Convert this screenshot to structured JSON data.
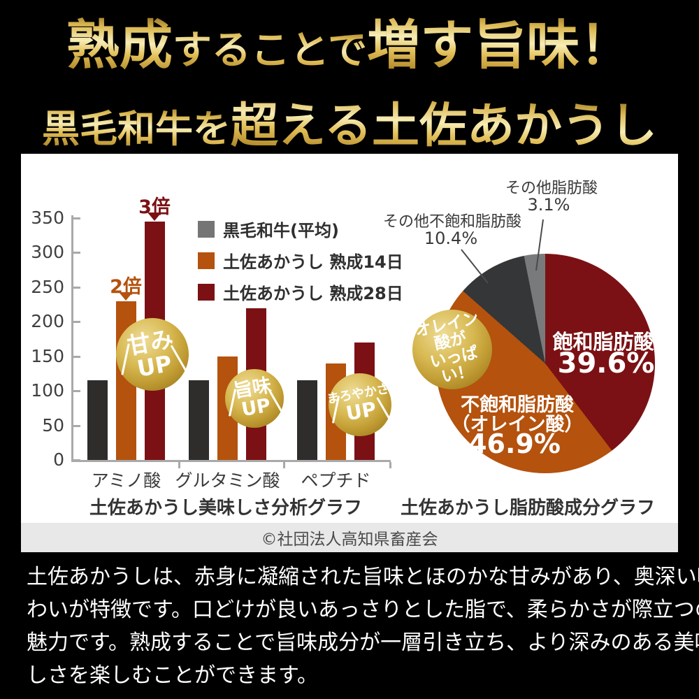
{
  "title": {
    "line1_a": "熟成",
    "line1_b": "することで",
    "line1_c": "増す旨味！",
    "line2_a": "黒毛和牛を",
    "line2_b": "超える土佐あかうし"
  },
  "credit": "©社団法人高知県畜産会",
  "paragraph": {
    "lines": [
      "土佐あかうしは、赤身に凝縮された旨味とほのかな甘みがあり、奥深い味",
      "わいが特徴です。口どけが良いあっさりとした脂で、柔らかさが際立つのも",
      "魅力です。熟成することで旨味成分が一層引き立ち、より深みのある美味",
      "しさを楽しむことができます。"
    ]
  },
  "colors": {
    "background": "#000000",
    "panel": "#ffffff",
    "credit_strip": "#e8e8e8",
    "kuroge_bar": "#2e2d2b",
    "kuroge_legend": "#757575",
    "aged14": "#b4520e",
    "aged28": "#7b1114",
    "gold_badge": "#c9a63e",
    "title_gold": "#e2bf58"
  },
  "chart_data": [
    {
      "type": "bar",
      "title": "土佐あかうし美味しさ分析グラフ",
      "categories": [
        "アミノ酸",
        "グルタミン酸",
        "ペプチド"
      ],
      "series": [
        {
          "name": "黒毛和牛(平均)",
          "color": "#2e2d2b",
          "legend_color": "#757575",
          "values": [
            115,
            115,
            115
          ]
        },
        {
          "name": "土佐あかうし 熟成14日",
          "color": "#b4520e",
          "legend_color": "#b4520e",
          "values": [
            230,
            150,
            140
          ]
        },
        {
          "name": "土佐あかうし 熟成28日",
          "color": "#7b1114",
          "legend_color": "#7b1114",
          "values": [
            345,
            220,
            170
          ]
        }
      ],
      "ylim": [
        0,
        350
      ],
      "yticks": [
        0,
        50,
        100,
        150,
        200,
        250,
        300,
        350
      ],
      "grid": false,
      "legend_position": "top-right-inside",
      "annotations": [
        {
          "text": "2倍",
          "color": "#b4520e",
          "category": "アミノ酸",
          "series": "土佐あかうし 熟成14日"
        },
        {
          "text": "3倍",
          "color": "#7b1114",
          "category": "アミノ酸",
          "series": "土佐あかうし 熟成28日"
        }
      ],
      "badges": [
        {
          "line1": "甘み",
          "line2": "UP"
        },
        {
          "line1": "旨味",
          "line2": "UP"
        },
        {
          "line1": "まろやかさ",
          "line2": "UP"
        }
      ]
    },
    {
      "type": "pie",
      "title": "土佐あかうし脂肪酸成分グラフ",
      "start_angle_deg": 0,
      "direction": "clockwise",
      "slices": [
        {
          "label": "飽和脂肪酸",
          "pct": 39.6,
          "pct_label": "39.6%",
          "color": "#7b1114"
        },
        {
          "label": "不飽和脂肪酸（オレイン酸）",
          "label_lines": [
            "不飽和脂肪酸",
            "（オレイン酸）"
          ],
          "pct": 46.9,
          "pct_label": "46.9%",
          "color": "#b4520e"
        },
        {
          "label": "その他不飽和脂肪酸",
          "pct": 10.4,
          "pct_label": "10.4%",
          "color": "#343638"
        },
        {
          "label": "その他脂肪酸",
          "pct": 3.1,
          "pct_label": "3.1%",
          "color": "#797a7c"
        }
      ],
      "badge": {
        "line1": "オレイン酸が",
        "line2": "いっぱい！"
      }
    }
  ]
}
